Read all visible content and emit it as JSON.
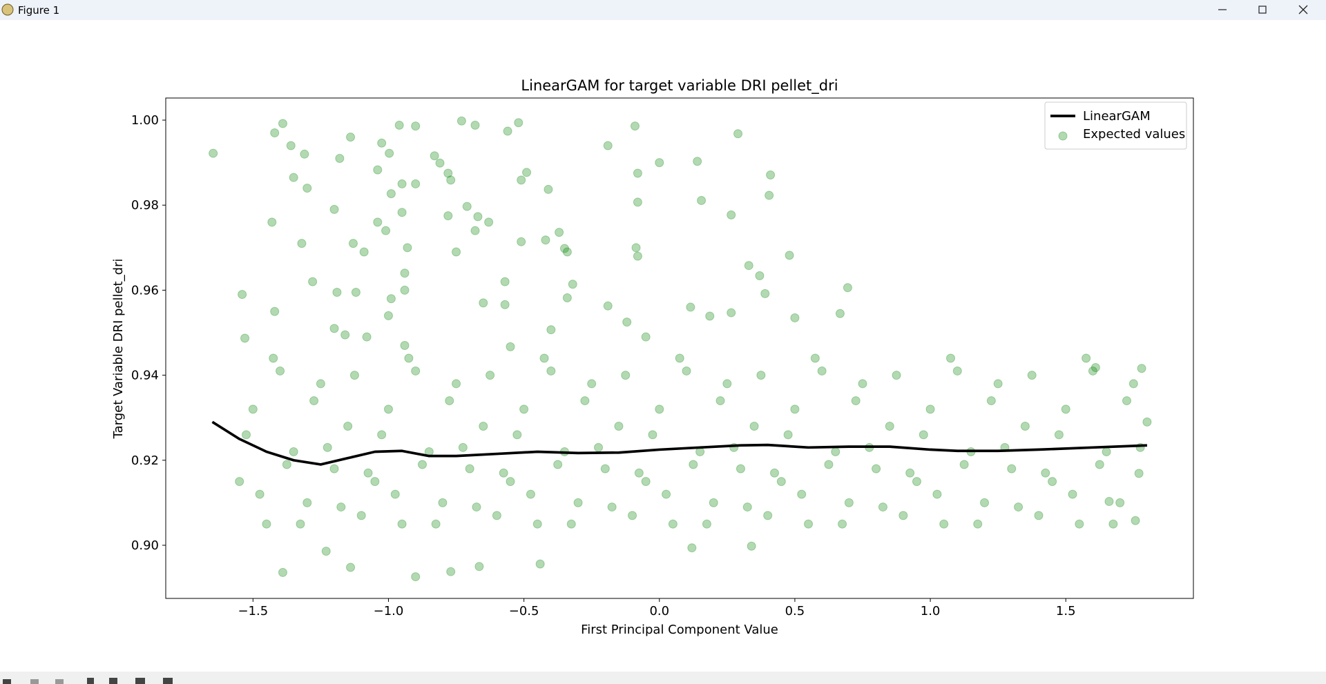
{
  "window": {
    "title": "Figure 1"
  },
  "chart_data": {
    "type": "scatter",
    "title": "LinearGAM for target variable DRI pellet_dri",
    "xlabel": "First Principal Component Value",
    "ylabel": "Target Variable DRI pellet_dri",
    "xlim": [
      -1.822,
      1.971
    ],
    "ylim": [
      0.8875,
      1.0052
    ],
    "xticks": [
      {
        "value": -1.5,
        "label": "−1.5"
      },
      {
        "value": -1.0,
        "label": "−1.0"
      },
      {
        "value": -0.5,
        "label": "−0.5"
      },
      {
        "value": 0,
        "label": "0.0"
      },
      0.5,
      {
        "value": 1.0,
        "label": "1.0"
      },
      1.5
    ],
    "yticks": [
      {
        "value": 0.9,
        "label": "0.90"
      },
      0.92,
      0.94,
      0.96,
      0.98,
      {
        "value": 1.0,
        "label": "1.00"
      }
    ],
    "grid": false,
    "legend": "upper right",
    "series": [
      {
        "name": "LinearGAM",
        "type": "line",
        "color": "#000000",
        "x": [
          -1.65,
          -1.55,
          -1.45,
          -1.35,
          -1.25,
          -1.15,
          -1.05,
          -0.95,
          -0.85,
          -0.75,
          -0.6,
          -0.45,
          -0.3,
          -0.15,
          0,
          0.15,
          0.3,
          0.4,
          0.55,
          0.7,
          0.85,
          1.0,
          1.1,
          1.25,
          1.4,
          1.6,
          1.8
        ],
        "values": [
          0.929,
          0.925,
          0.922,
          0.92,
          0.919,
          0.9205,
          0.922,
          0.9222,
          0.921,
          0.921,
          0.9215,
          0.922,
          0.9217,
          0.9218,
          0.9225,
          0.923,
          0.9235,
          0.9236,
          0.923,
          0.9232,
          0.9232,
          0.9225,
          0.9222,
          0.9222,
          0.9225,
          0.923,
          0.9235
        ]
      },
      {
        "name": "Expected values",
        "type": "scatter",
        "color": "#008000",
        "alpha": 0.3,
        "x": [
          -1.647,
          -1.39,
          -1.42,
          -1.36,
          -1.31,
          -1.35,
          -1.3,
          -1.14,
          -1.18,
          -1.2,
          -1.43,
          -1.32,
          -1.28,
          -1.54,
          -1.42,
          -1.53,
          -1.13,
          -1.09,
          -1.12,
          -1.19,
          -1.16,
          -1.2,
          -1.08,
          -1.025,
          -0.997,
          -1.04,
          -0.99,
          -0.96,
          -0.9,
          -0.95,
          -0.9,
          -0.95,
          -1.04,
          -1.01,
          -0.93,
          -0.94,
          -0.94,
          -0.99,
          -1.0,
          -0.94,
          -0.83,
          -0.81,
          -0.78,
          -0.77,
          -0.78,
          -0.75,
          -0.73,
          -0.68,
          -0.71,
          -0.67,
          -0.63,
          -0.68,
          -0.65,
          -0.57,
          -0.57,
          -0.52,
          -0.56,
          -0.49,
          -0.51,
          -0.51,
          -0.41,
          -0.42,
          -0.37,
          -0.35,
          -0.34,
          -0.32,
          -0.34,
          -0.4,
          -0.55,
          -0.09,
          0.0,
          -0.08,
          -0.08,
          -0.086,
          -0.08,
          -0.19,
          -0.12,
          -0.05,
          -0.19,
          0.14,
          0.155,
          0.115,
          0.186,
          0.265,
          0.265,
          0.29,
          0.33,
          0.37,
          0.39,
          0.41,
          0.405,
          0.48,
          0.5,
          0.695,
          0.667,
          -1.39,
          -1.23,
          -1.14,
          -0.9,
          -0.77,
          -0.665,
          -0.44,
          0.34,
          0.12,
          1.757,
          1.77,
          1.8,
          1.78,
          1.66,
          1.61,
          -1.55,
          -1.5,
          -1.45,
          -1.4,
          -1.35,
          -1.3,
          -1.25,
          -1.2,
          -1.15,
          -1.1,
          -1.05,
          -1.0,
          -0.95,
          -0.9,
          -0.85,
          -0.8,
          -0.75,
          -0.7,
          -0.65,
          -0.6,
          -0.55,
          -0.5,
          -0.45,
          -0.4,
          -0.35,
          -0.3,
          -0.25,
          -0.2,
          -0.15,
          -0.1,
          -0.05,
          0.0,
          0.05,
          0.1,
          0.15,
          0.2,
          0.25,
          0.3,
          0.35,
          0.4,
          0.45,
          0.5,
          0.55,
          0.6,
          0.65,
          0.7,
          0.75,
          0.8,
          0.85,
          0.9,
          0.95,
          1.0,
          1.05,
          1.1,
          1.15,
          1.2,
          1.25,
          1.3,
          1.35,
          1.4,
          1.45,
          1.5,
          1.55,
          1.6,
          1.65,
          1.7,
          1.75,
          -1.525,
          -1.475,
          -1.425,
          -1.375,
          -1.325,
          -1.275,
          -1.225,
          -1.175,
          -1.125,
          -1.075,
          -1.025,
          -0.975,
          -0.925,
          -0.875,
          -0.825,
          -0.775,
          -0.725,
          -0.675,
          -0.625,
          -0.575,
          -0.525,
          -0.475,
          -0.425,
          -0.375,
          -0.325,
          -0.275,
          -0.225,
          -0.175,
          -0.125,
          -0.075,
          -0.025,
          0.025,
          0.075,
          0.125,
          0.175,
          0.225,
          0.275,
          0.325,
          0.375,
          0.425,
          0.475,
          0.525,
          0.575,
          0.625,
          0.675,
          0.725,
          0.775,
          0.825,
          0.875,
          0.925,
          0.975,
          1.025,
          1.075,
          1.125,
          1.175,
          1.225,
          1.275,
          1.325,
          1.375,
          1.425,
          1.475,
          1.525,
          1.575,
          1.625,
          1.675,
          1.725,
          1.775
        ],
        "values": [
          0.9922,
          0.9992,
          0.997,
          0.994,
          0.992,
          0.9865,
          0.984,
          0.996,
          0.991,
          0.979,
          0.976,
          0.971,
          0.962,
          0.959,
          0.955,
          0.9487,
          0.971,
          0.969,
          0.9595,
          0.9595,
          0.9495,
          0.951,
          0.949,
          0.9946,
          0.9922,
          0.9883,
          0.9827,
          0.9988,
          0.9986,
          0.985,
          0.985,
          0.9783,
          0.976,
          0.974,
          0.97,
          0.964,
          0.96,
          0.958,
          0.954,
          0.947,
          0.9916,
          0.9899,
          0.9875,
          0.9859,
          0.9775,
          0.969,
          0.9998,
          0.9988,
          0.9797,
          0.9773,
          0.976,
          0.974,
          0.957,
          0.962,
          0.9566,
          0.9994,
          0.9974,
          0.9877,
          0.9859,
          0.9714,
          0.9837,
          0.9718,
          0.9736,
          0.9698,
          0.969,
          0.9614,
          0.9582,
          0.9507,
          0.9467,
          0.9986,
          0.99,
          0.9875,
          0.9807,
          0.97,
          0.968,
          0.9563,
          0.9525,
          0.949,
          0.994,
          0.9903,
          0.9811,
          0.956,
          0.9539,
          0.9777,
          0.9547,
          0.9968,
          0.9658,
          0.9634,
          0.9592,
          0.9871,
          0.9823,
          0.9682,
          0.9535,
          0.9606,
          0.9545,
          0.8936,
          0.8986,
          0.8948,
          0.8926,
          0.8938,
          0.895,
          0.8956,
          0.8998,
          0.8994,
          0.9058,
          0.9169,
          0.929,
          0.9416,
          0.9103,
          0.9418,
          0.915,
          0.932,
          0.905,
          0.941,
          0.922,
          0.91,
          0.938,
          0.918,
          0.928,
          0.907,
          0.915,
          0.932,
          0.905,
          0.941,
          0.922,
          0.91,
          0.938,
          0.918,
          0.928,
          0.907,
          0.915,
          0.932,
          0.905,
          0.941,
          0.922,
          0.91,
          0.938,
          0.918,
          0.928,
          0.907,
          0.915,
          0.932,
          0.905,
          0.941,
          0.922,
          0.91,
          0.938,
          0.918,
          0.928,
          0.907,
          0.915,
          0.932,
          0.905,
          0.941,
          0.922,
          0.91,
          0.938,
          0.918,
          0.928,
          0.907,
          0.915,
          0.932,
          0.905,
          0.941,
          0.922,
          0.91,
          0.938,
          0.918,
          0.928,
          0.907,
          0.915,
          0.932,
          0.905,
          0.941,
          0.922,
          0.91,
          0.938,
          0.926,
          0.912,
          0.944,
          0.919,
          0.905,
          0.934,
          0.923,
          0.909,
          0.94,
          0.917,
          0.926,
          0.912,
          0.944,
          0.919,
          0.905,
          0.934,
          0.923,
          0.909,
          0.94,
          0.917,
          0.926,
          0.912,
          0.944,
          0.919,
          0.905,
          0.934,
          0.923,
          0.909,
          0.94,
          0.917,
          0.926,
          0.912,
          0.944,
          0.919,
          0.905,
          0.934,
          0.923,
          0.909,
          0.94,
          0.917,
          0.926,
          0.912,
          0.944,
          0.919,
          0.905,
          0.934,
          0.923,
          0.909,
          0.94,
          0.917,
          0.926,
          0.912,
          0.944,
          0.919,
          0.905,
          0.934,
          0.923,
          0.909,
          0.94,
          0.917,
          0.926,
          0.912,
          0.944,
          0.919,
          0.905,
          0.934,
          0.923
        ]
      }
    ]
  }
}
